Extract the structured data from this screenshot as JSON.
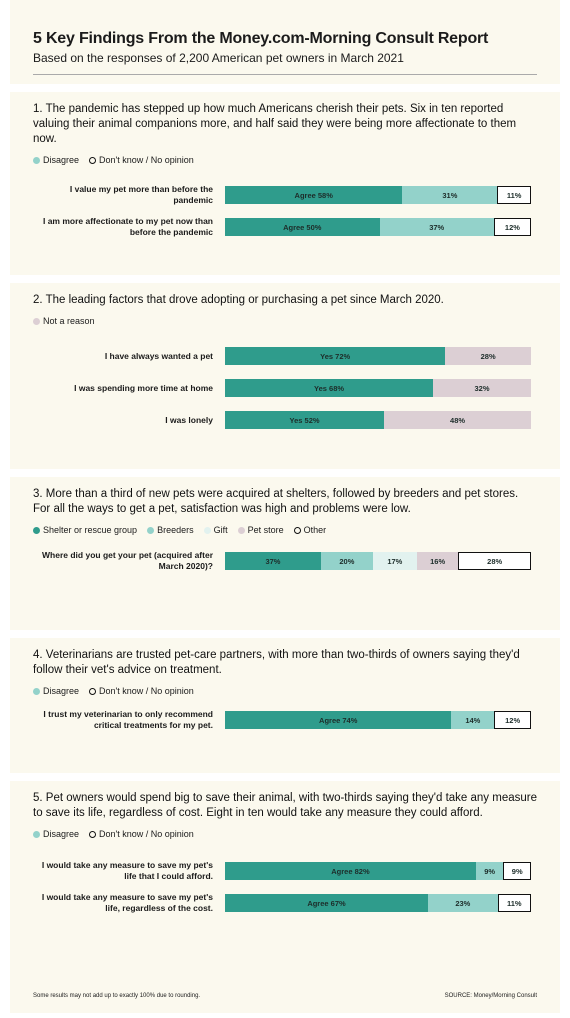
{
  "title": "5 Key Findings From the Money.com-Morning Consult Report",
  "subtitle": "Based on the responses of 2,200 American pet owners in March 2021",
  "chart_data": [
    {
      "type": "bar",
      "title": "1. The pandemic has stepped up how much Americans cherish their pets. Six in ten reported valuing their animal companions more, and half said they were being more affectionate to them now.",
      "categories": [
        "I value my pet more than before the pandemic",
        "I am more affectionate to my pet now than before the pandemic"
      ],
      "series": [
        {
          "color": "#2f9c8c",
          "values": [
            58,
            50
          ],
          "value_labels": [
            "Agree 58%",
            "Agree 50%"
          ]
        },
        {
          "name": "Disagree",
          "color": "#93d2ca",
          "values": [
            31,
            37
          ],
          "value_labels": [
            "31%",
            "37%"
          ]
        },
        {
          "name": "Don't know / No opinion",
          "color": "#ffffff",
          "values": [
            11,
            12
          ],
          "value_labels": [
            "11%",
            "12%"
          ]
        }
      ]
    },
    {
      "type": "bar",
      "title": "2. The leading factors that drove adopting or purchasing a pet since March 2020.",
      "categories": [
        "I have always wanted a pet",
        "I was spending more time at home",
        "I was lonely"
      ],
      "series": [
        {
          "color": "#2f9c8c",
          "values": [
            72,
            68,
            52
          ],
          "value_labels": [
            "Yes 72%",
            "Yes 68%",
            "Yes 52%"
          ]
        },
        {
          "name": "Not a reason",
          "color": "#dccfd4",
          "values": [
            28,
            32,
            48
          ],
          "value_labels": [
            "28%",
            "32%",
            "48%"
          ]
        }
      ]
    },
    {
      "type": "bar",
      "title": "3. More than a third of new pets were acquired at shelters, followed by breeders and pet stores. For all the ways to get a pet, satisfaction was high and problems were low.",
      "categories": [
        "Where did you get your pet (acquired after March 2020)?"
      ],
      "series": [
        {
          "name": "Shelter or rescue group",
          "color": "#2f9c8c",
          "values": [
            37
          ],
          "value_labels": [
            "37%"
          ]
        },
        {
          "name": "Breeders",
          "color": "#93d2ca",
          "values": [
            20
          ],
          "value_labels": [
            "20%"
          ]
        },
        {
          "name": "Gift",
          "color": "#e2f2ef",
          "values": [
            17
          ],
          "value_labels": [
            "17%"
          ]
        },
        {
          "name": "Pet store",
          "color": "#dccfd4",
          "values": [
            16
          ],
          "value_labels": [
            "16%"
          ]
        },
        {
          "name": "Other",
          "color": "#ffffff",
          "values": [
            28
          ],
          "value_labels": [
            "28%"
          ]
        }
      ]
    },
    {
      "type": "bar",
      "title": "4. Veterinarians are trusted pet-care partners, with more than two-thirds of owners saying they'd follow their vet's advice on treatment.",
      "categories": [
        "I trust my veterinarian to only recommend critical treatments for my pet."
      ],
      "series": [
        {
          "color": "#2f9c8c",
          "values": [
            74
          ],
          "value_labels": [
            "Agree 74%"
          ]
        },
        {
          "name": "Disagree",
          "color": "#93d2ca",
          "values": [
            14
          ],
          "value_labels": [
            "14%"
          ]
        },
        {
          "name": "Don't know / No opinion",
          "color": "#ffffff",
          "values": [
            12
          ],
          "value_labels": [
            "12%"
          ]
        }
      ]
    },
    {
      "type": "bar",
      "title": "5. Pet owners would spend big to save their animal, with two-thirds saying they'd take any measure to save its life, regardless of cost. Eight in ten would take any measure they could afford.",
      "categories": [
        "I would take any measure to save my pet's life that I could afford.",
        "I would take any measure to save my pet's life, regardless of the cost."
      ],
      "series": [
        {
          "color": "#2f9c8c",
          "values": [
            82,
            67
          ],
          "value_labels": [
            "Agree 82%",
            "Agree 67%"
          ]
        },
        {
          "name": "Disagree",
          "color": "#93d2ca",
          "values": [
            9,
            23
          ],
          "value_labels": [
            "9%",
            "23%"
          ]
        },
        {
          "name": "Don't know / No opinion",
          "color": "#ffffff",
          "values": [
            9,
            11
          ],
          "value_labels": [
            "9%",
            "11%"
          ]
        }
      ]
    }
  ],
  "footnote": "Some results may not add up to exactly 100% due to rounding.",
  "source": "SOURCE: Money/Morning Consult"
}
